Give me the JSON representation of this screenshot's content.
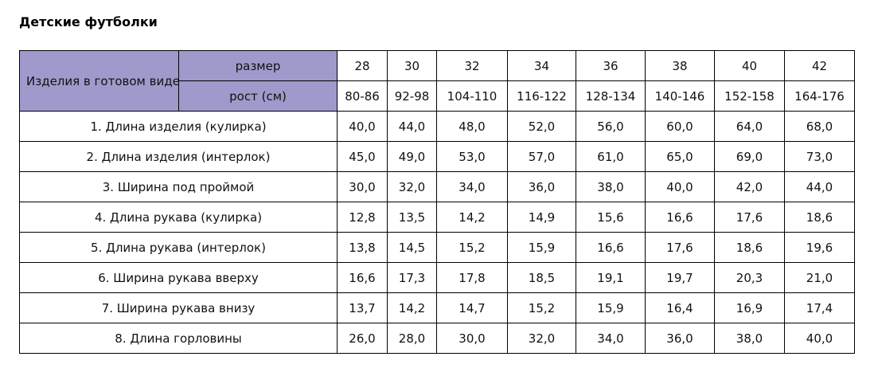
{
  "title": "Детские футболки",
  "table": {
    "corner": "Изделия в готовом виде",
    "size_label": "размер",
    "height_label": "рост (см)",
    "sizes": [
      "28",
      "30",
      "32",
      "34",
      "36",
      "38",
      "40",
      "42"
    ],
    "heights": [
      "80-86",
      "92-98",
      "104-110",
      "116-122",
      "128-134",
      "140-146",
      "152-158",
      "164-176"
    ],
    "rows": [
      {
        "label": "1. Длина изделия (кулирка)",
        "values": [
          "40,0",
          "44,0",
          "48,0",
          "52,0",
          "56,0",
          "60,0",
          "64,0",
          "68,0"
        ]
      },
      {
        "label": "2. Длина изделия (интерлок)",
        "values": [
          "45,0",
          "49,0",
          "53,0",
          "57,0",
          "61,0",
          "65,0",
          "69,0",
          "73,0"
        ]
      },
      {
        "label": "3. Ширина под проймой",
        "values": [
          "30,0",
          "32,0",
          "34,0",
          "36,0",
          "38,0",
          "40,0",
          "42,0",
          "44,0"
        ]
      },
      {
        "label": "4. Длина рукава (кулирка)",
        "values": [
          "12,8",
          "13,5",
          "14,2",
          "14,9",
          "15,6",
          "16,6",
          "17,6",
          "18,6"
        ]
      },
      {
        "label": "5. Длина рукава (интерлок)",
        "values": [
          "13,8",
          "14,5",
          "15,2",
          "15,9",
          "16,6",
          "17,6",
          "18,6",
          "19,6"
        ]
      },
      {
        "label": "6. Ширина рукава вверху",
        "values": [
          "16,6",
          "17,3",
          "17,8",
          "18,5",
          "19,1",
          "19,7",
          "20,3",
          "21,0"
        ]
      },
      {
        "label": "7. Ширина рукава внизу",
        "values": [
          "13,7",
          "14,2",
          "14,7",
          "15,2",
          "15,9",
          "16,4",
          "16,9",
          "17,4"
        ]
      },
      {
        "label": "8. Длина горловины",
        "values": [
          "26,0",
          "28,0",
          "30,0",
          "32,0",
          "34,0",
          "36,0",
          "38,0",
          "40,0"
        ]
      }
    ]
  }
}
